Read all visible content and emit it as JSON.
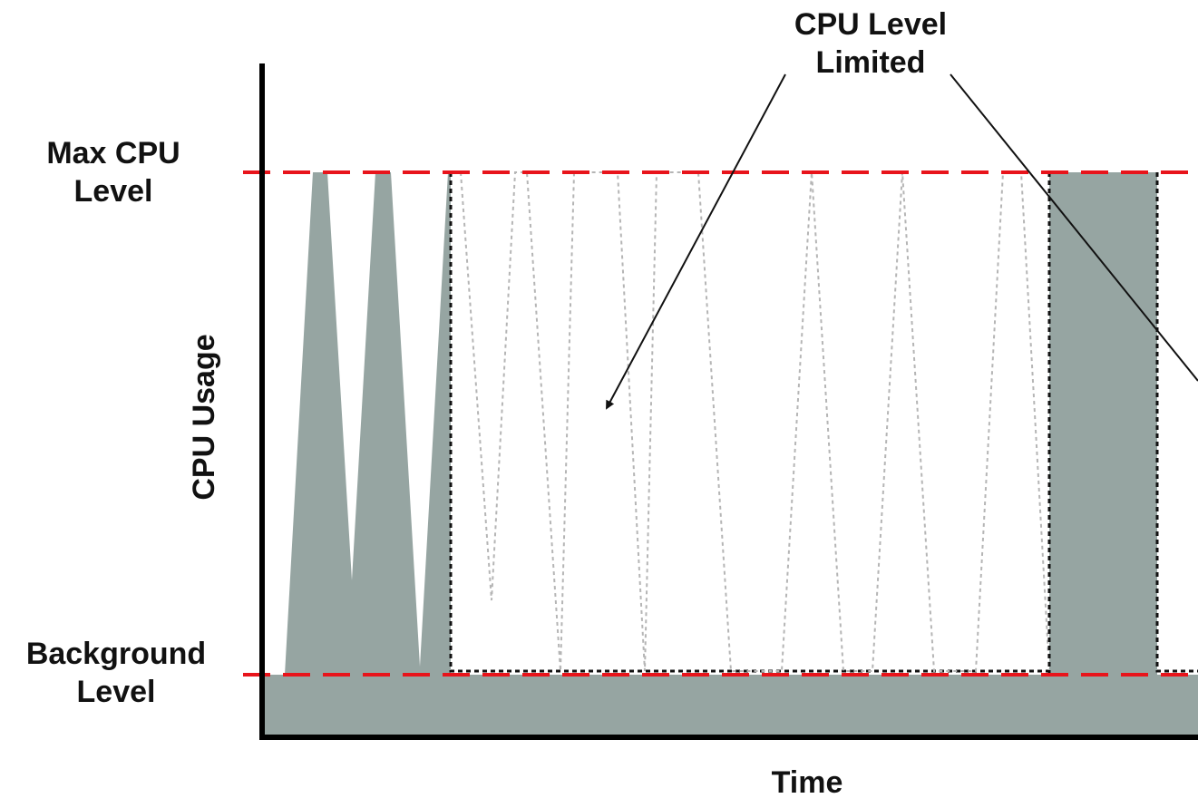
{
  "labels": {
    "max_cpu_level": "Max CPU\nLevel",
    "background_level": "Background\nLevel",
    "callout": "CPU Level\nLimited",
    "y_axis": "CPU Usage",
    "x_axis": "Time"
  },
  "colors": {
    "fill": "#96a5a2",
    "threshold_line": "#e8141b",
    "axis": "#000000",
    "limited_outline": "#111111",
    "suppressed_trace": "#b5b5b5",
    "annotation": "#111111"
  }
}
